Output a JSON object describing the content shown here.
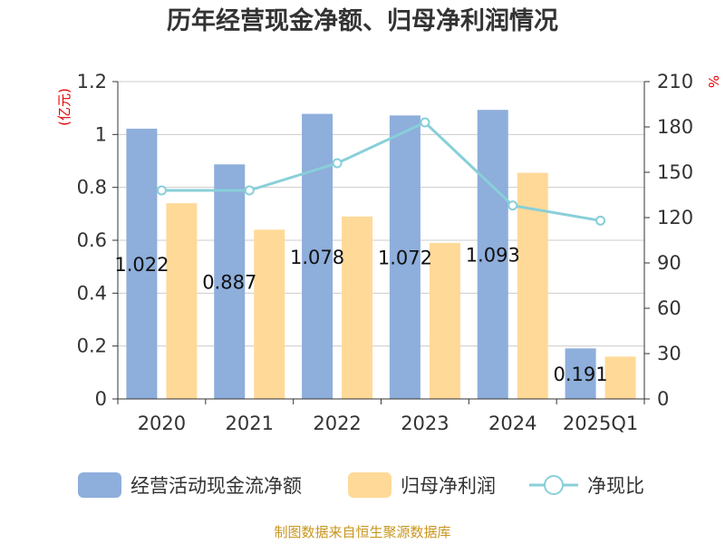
{
  "title": "历年经营现金净额、归母净利润情况",
  "source": "制图数据来自恒生聚源数据库",
  "colors": {
    "bar1": "#8eaedb",
    "bar2": "#ffd998",
    "line": "#88cfd9",
    "unit": "#e60000",
    "source": "#c8961e"
  },
  "chart_data": {
    "type": "bar",
    "categories": [
      "2020",
      "2021",
      "2022",
      "2023",
      "2024",
      "2025Q1"
    ],
    "y_left": {
      "label": "(亿元)",
      "min": 0,
      "max": 1.2,
      "ticks": [
        "0",
        "0.2",
        "0.4",
        "0.6",
        "0.8",
        "1",
        "1.2"
      ]
    },
    "y_right": {
      "label": "%",
      "min": 0,
      "max": 210,
      "ticks": [
        "0",
        "30",
        "60",
        "90",
        "120",
        "150",
        "180",
        "210"
      ]
    },
    "series": [
      {
        "name": "经营活动现金流净额",
        "type": "bar",
        "axis": "left",
        "values": [
          1.022,
          0.887,
          1.078,
          1.072,
          1.093,
          0.191
        ],
        "labels": [
          "1.022",
          "0.887",
          "1.078",
          "1.072",
          "1.093",
          "0.191"
        ]
      },
      {
        "name": "归母净利润",
        "type": "bar",
        "axis": "left",
        "values": [
          0.74,
          0.64,
          0.69,
          0.59,
          0.855,
          0.16
        ]
      },
      {
        "name": "净现比",
        "type": "line",
        "axis": "right",
        "values": [
          138,
          138,
          156,
          183,
          128,
          118
        ]
      }
    ],
    "grid": true,
    "legend": "bottom"
  }
}
